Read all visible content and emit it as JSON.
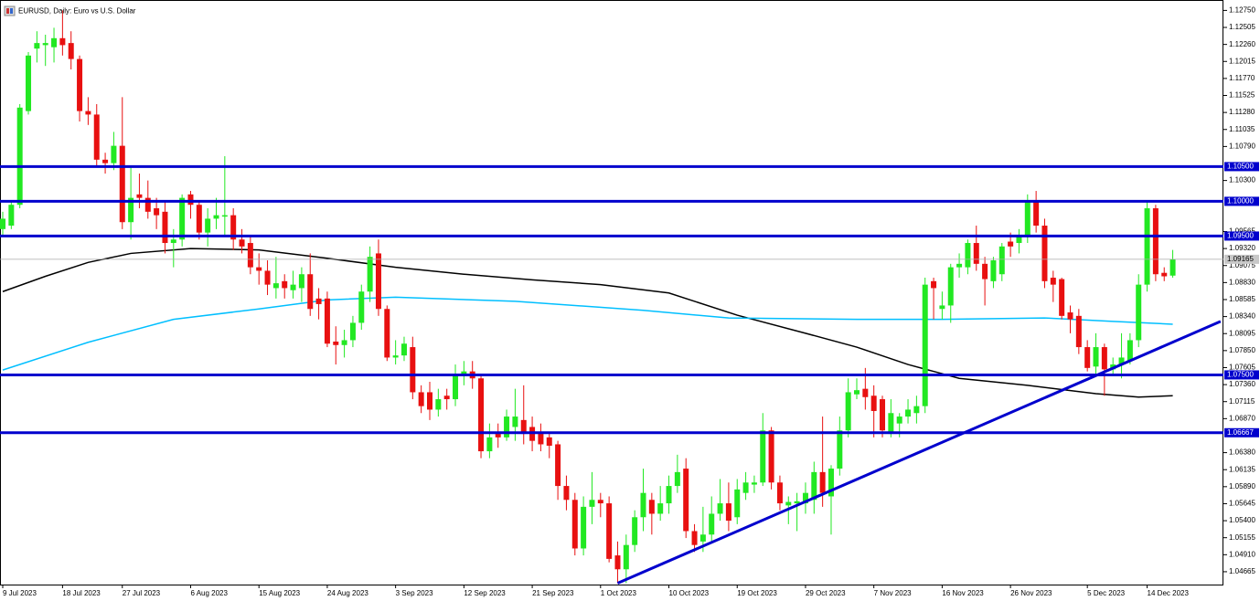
{
  "chart_data": {
    "type": "candlestick",
    "title": "EURUSD, Daily:  Euro vs U.S. Dollar",
    "up_color": "#22e822",
    "down_color": "#e81010",
    "categories": [
      "9 Jul 2023",
      null,
      null,
      null,
      null,
      null,
      null,
      "18 Jul 2023",
      null,
      null,
      null,
      null,
      null,
      null,
      "27 Jul 2023",
      null,
      null,
      null,
      null,
      null,
      null,
      null,
      "6 Aug 2023",
      null,
      null,
      null,
      null,
      null,
      null,
      null,
      "15 Aug 2023",
      null,
      null,
      null,
      null,
      null,
      null,
      null,
      "24 Aug 2023",
      null,
      null,
      null,
      null,
      null,
      null,
      null,
      "3 Sep 2023",
      null,
      null,
      null,
      null,
      null,
      null,
      null,
      "12 Sep 2023",
      null,
      null,
      null,
      null,
      null,
      null,
      null,
      "21 Sep 2023",
      null,
      null,
      null,
      null,
      null,
      null,
      null,
      "1 Oct 2023",
      null,
      null,
      null,
      null,
      null,
      null,
      null,
      "10 Oct 2023",
      null,
      null,
      null,
      null,
      null,
      null,
      null,
      "19 Oct 2023",
      null,
      null,
      null,
      null,
      null,
      null,
      null,
      "29 Oct 2023",
      null,
      null,
      null,
      null,
      null,
      null,
      null,
      "7 Nov 2023",
      null,
      null,
      null,
      null,
      null,
      null,
      null,
      "16 Nov 2023",
      null,
      null,
      null,
      null,
      null,
      null,
      null,
      "26 Nov 2023",
      null,
      null,
      null,
      null,
      null,
      null,
      null,
      null,
      "5 Dec 2023",
      null,
      null,
      null,
      null,
      null,
      null,
      "14 Dec 2023",
      null,
      null,
      null
    ],
    "open": [
      1.096,
      1.0965,
      1.0995,
      1.113,
      1.122,
      1.1225,
      1.1222,
      1.1235,
      1.1228,
      1.1205,
      1.113,
      1.1125,
      1.106,
      1.1055,
      1.108,
      1.097,
      1.101,
      1.1005,
      1.099,
      1.0985,
      1.094,
      1.0945,
      1.101,
      1.0995,
      1.0955,
      1.0975,
      1.0978,
      1.098,
      1.0945,
      1.094,
      1.0905,
      1.09,
      1.0875,
      1.0885,
      1.0872,
      1.0875,
      1.0895,
      1.086,
      1.086,
      1.0798,
      1.0793,
      1.08,
      1.0825,
      1.087,
      1.0925,
      1.0845,
      1.0775,
      1.0778,
      1.079,
      1.0725,
      1.0725,
      1.07,
      1.072,
      1.0715,
      1.075,
      1.0755,
      1.0745,
      1.064,
      1.0665,
      1.066,
      1.0675,
      1.0685,
      1.0675,
      1.0665,
      1.066,
      1.065,
      1.059,
      1.057,
      1.05,
      1.056,
      1.057,
      1.0565,
      1.049,
      1.047,
      1.0505,
      1.0545,
      1.057,
      1.055,
      1.0565,
      1.059,
      1.0615,
      1.0525,
      1.051,
      1.052,
      1.055,
      1.0565,
      1.0545,
      1.058,
      1.0592,
      1.0595,
      1.067,
      1.0595,
      1.0562,
      1.0565,
      1.0565,
      1.057,
      1.061,
      1.0575,
      1.0615,
      1.067,
      1.0722,
      1.073,
      1.072,
      1.0715,
      1.0665,
      1.068,
      1.069,
      1.0695,
      1.0705,
      1.0885,
      1.0845,
      1.085,
      1.0905,
      1.0905,
      1.094,
      1.091,
      1.0885,
      1.0895,
      1.0942,
      1.094,
      1.095,
      1.1,
      1.0965,
      1.089,
      1.0888,
      1.084,
      1.0835,
      1.079,
      1.0762,
      1.079,
      1.0758,
      1.0765,
      1.077,
      1.08,
      1.088,
      1.099,
      1.0897,
      1.0893
    ],
    "high": [
      1.0985,
      1.1,
      1.114,
      1.1215,
      1.1245,
      1.124,
      1.125,
      1.1275,
      1.1245,
      1.121,
      1.115,
      1.114,
      1.107,
      1.11,
      1.115,
      1.105,
      1.104,
      1.103,
      1.1005,
      1.1,
      1.096,
      1.101,
      1.1015,
      1.1,
      1.099,
      1.1005,
      1.1065,
      1.099,
      1.096,
      1.095,
      1.0925,
      1.0915,
      1.092,
      1.0895,
      1.09,
      1.0905,
      1.0925,
      1.0875,
      1.087,
      1.082,
      1.0815,
      1.0835,
      1.088,
      1.0935,
      1.0945,
      1.085,
      1.08,
      1.0805,
      1.0805,
      1.0735,
      1.074,
      1.073,
      1.073,
      1.0765,
      1.077,
      1.077,
      1.075,
      1.068,
      1.068,
      1.07,
      1.073,
      1.0735,
      1.069,
      1.068,
      1.0665,
      1.0655,
      1.0605,
      1.058,
      1.0575,
      1.061,
      1.058,
      1.0575,
      1.051,
      1.052,
      1.0555,
      1.0615,
      1.058,
      1.059,
      1.0605,
      1.0635,
      1.063,
      1.0535,
      1.056,
      1.0575,
      1.06,
      1.0595,
      1.06,
      1.061,
      1.0605,
      1.0695,
      1.0675,
      1.0605,
      1.0575,
      1.058,
      1.0595,
      1.0625,
      1.069,
      1.062,
      1.069,
      1.0745,
      1.0745,
      1.076,
      1.0735,
      1.072,
      1.0715,
      1.0695,
      1.0715,
      1.072,
      1.089,
      1.089,
      1.087,
      1.091,
      1.0925,
      1.0945,
      1.0965,
      1.092,
      1.092,
      1.094,
      1.0955,
      1.096,
      1.101,
      1.1015,
      1.0975,
      1.09,
      1.089,
      1.085,
      1.0845,
      1.08,
      1.081,
      1.0795,
      1.0775,
      1.081,
      1.081,
      1.0895,
      1.1,
      1.0995,
      1.0905,
      1.093
    ],
    "low": [
      1.095,
      1.096,
      1.099,
      1.1125,
      1.12,
      1.1195,
      1.12,
      1.121,
      1.119,
      1.1115,
      1.111,
      1.105,
      1.104,
      1.1045,
      1.096,
      1.0945,
      1.099,
      1.0975,
      1.096,
      1.0925,
      1.0905,
      1.0935,
      1.0975,
      1.0945,
      1.0935,
      1.096,
      1.095,
      1.093,
      1.0925,
      1.0895,
      1.088,
      1.0865,
      1.086,
      1.086,
      1.086,
      1.0855,
      1.0835,
      1.083,
      1.079,
      1.0765,
      1.0775,
      1.079,
      1.0815,
      1.0855,
      1.0835,
      1.077,
      1.0765,
      1.077,
      1.0715,
      1.0695,
      1.0685,
      1.069,
      1.07,
      1.0705,
      1.0735,
      1.073,
      1.063,
      1.063,
      1.0645,
      1.0655,
      1.0655,
      1.065,
      1.064,
      1.064,
      1.063,
      1.057,
      1.0555,
      1.049,
      1.049,
      1.0535,
      1.0545,
      1.048,
      1.045,
      1.045,
      1.0495,
      1.0525,
      1.052,
      1.054,
      1.055,
      1.058,
      1.0515,
      1.0495,
      1.0495,
      1.051,
      1.054,
      1.0525,
      1.0535,
      1.057,
      1.058,
      1.059,
      1.0585,
      1.0555,
      1.0535,
      1.0525,
      1.055,
      1.055,
      1.056,
      1.052,
      1.0605,
      1.066,
      1.0715,
      1.07,
      1.066,
      1.066,
      1.066,
      1.066,
      1.068,
      1.068,
      1.0695,
      1.083,
      1.083,
      1.0825,
      1.089,
      1.0895,
      1.09,
      1.085,
      1.0875,
      1.0885,
      1.092,
      1.0925,
      1.094,
      1.0955,
      1.0875,
      1.0855,
      1.083,
      1.081,
      1.078,
      1.0755,
      1.075,
      1.072,
      1.075,
      1.0745,
      1.0765,
      1.079,
      1.087,
      1.0885,
      1.0885,
      1.089
    ],
    "close": [
      1.0975,
      1.0995,
      1.1135,
      1.121,
      1.1228,
      1.1228,
      1.1235,
      1.1225,
      1.1205,
      1.113,
      1.1125,
      1.106,
      1.1055,
      1.108,
      1.097,
      1.1005,
      1.1005,
      1.0985,
      1.098,
      1.094,
      1.0945,
      1.1005,
      1.0995,
      1.0955,
      1.0975,
      1.098,
      1.098,
      1.0945,
      1.0935,
      1.0905,
      1.09,
      1.088,
      1.0882,
      1.0875,
      1.088,
      1.0895,
      1.0845,
      1.0852,
      1.0795,
      1.0793,
      1.08,
      1.0825,
      1.087,
      1.092,
      1.0845,
      1.0775,
      1.0778,
      1.0795,
      1.0725,
      1.0705,
      1.07,
      1.0715,
      1.0715,
      1.075,
      1.0755,
      1.0745,
      1.064,
      1.066,
      1.066,
      1.069,
      1.069,
      1.0665,
      1.0655,
      1.065,
      1.0648,
      1.059,
      1.057,
      1.05,
      1.056,
      1.057,
      1.0565,
      1.0485,
      1.047,
      1.0505,
      1.0545,
      1.058,
      1.055,
      1.0565,
      1.059,
      1.061,
      1.0525,
      1.0505,
      1.052,
      1.055,
      1.0565,
      1.054,
      1.0585,
      1.0595,
      1.0595,
      1.067,
      1.0595,
      1.0565,
      1.0567,
      1.0568,
      1.058,
      1.061,
      1.058,
      1.0615,
      1.067,
      1.0725,
      1.0728,
      1.0718,
      1.0698,
      1.067,
      1.0695,
      1.069,
      1.07,
      1.0705,
      1.088,
      1.0875,
      1.085,
      1.0905,
      1.091,
      1.094,
      1.091,
      1.0888,
      1.0915,
      1.0935,
      1.0935,
      1.095,
      1.1,
      1.0965,
      1.0885,
      1.088,
      1.0835,
      1.083,
      1.079,
      1.076,
      1.079,
      1.0758,
      1.0765,
      1.0775,
      1.08,
      1.088,
      1.099,
      1.0895,
      1.0892,
      1.09165
    ],
    "moving_averages": [
      {
        "color": "#000000",
        "x": [
          0,
          5,
          10,
          15,
          22,
          30,
          38,
          46,
          54,
          62,
          70,
          78,
          86,
          94,
          100,
          106,
          112,
          120,
          128,
          133,
          137
        ],
        "values": [
          1.087,
          1.0892,
          1.0912,
          1.0925,
          1.0932,
          1.093,
          1.0918,
          1.0905,
          1.0895,
          1.0887,
          1.088,
          1.0868,
          1.0836,
          1.081,
          1.079,
          1.0765,
          1.0745,
          1.0735,
          1.0723,
          1.0718,
          1.072
        ]
      },
      {
        "color": "#00bfff",
        "x": [
          0,
          10,
          20,
          30,
          38,
          46,
          60,
          75,
          85,
          100,
          110,
          122,
          130,
          137
        ],
        "values": [
          1.0757,
          1.0797,
          1.083,
          1.0845,
          1.0858,
          1.0862,
          1.0856,
          1.0843,
          1.0832,
          1.083,
          1.083,
          1.0832,
          1.0827,
          1.0823
        ]
      }
    ],
    "trendline": {
      "color": "#0000cd",
      "x": [
        72,
        142.6
      ],
      "values": [
        1.045,
        1.0827
      ]
    },
    "levels": {
      "color": "#0000cd",
      "values": [
        1.105,
        1.1,
        1.095,
        1.075,
        1.06667
      ],
      "labels": [
        "1.10500",
        "1.10000",
        "1.09500",
        "1.07500",
        "1.06667"
      ]
    },
    "last_price": 1.09165,
    "last_price_label": "1.09165",
    "ylim": [
      1.0448,
      1.129
    ],
    "yticks": [
      {
        "value": 1.1275,
        "label": "1.12750"
      },
      {
        "value": 1.12505,
        "label": "1.12505"
      },
      {
        "value": 1.1226,
        "label": "1.12260"
      },
      {
        "value": 1.12015,
        "label": "1.12015"
      },
      {
        "value": 1.1177,
        "label": "1.11770"
      },
      {
        "value": 1.11525,
        "label": "1.11525"
      },
      {
        "value": 1.1128,
        "label": "1.11280"
      },
      {
        "value": 1.11035,
        "label": "1.11035"
      },
      {
        "value": 1.1079,
        "label": "1.10790"
      },
      {
        "value": 1.103,
        "label": "1.10300"
      },
      {
        "value": 1.09565,
        "label": "1.09565"
      },
      {
        "value": 1.0932,
        "label": "1.09320"
      },
      {
        "value": 1.09075,
        "label": "1.09075"
      },
      {
        "value": 1.0883,
        "label": "1.08830"
      },
      {
        "value": 1.08585,
        "label": "1.08585"
      },
      {
        "value": 1.0834,
        "label": "1.08340"
      },
      {
        "value": 1.08095,
        "label": "1.08095"
      },
      {
        "value": 1.0785,
        "label": "1.07850"
      },
      {
        "value": 1.07605,
        "label": "1.07605"
      },
      {
        "value": 1.0736,
        "label": "1.07360"
      },
      {
        "value": 1.07115,
        "label": "1.07115"
      },
      {
        "value": 1.0687,
        "label": "1.06870"
      },
      {
        "value": 1.0638,
        "label": "1.06380"
      },
      {
        "value": 1.06135,
        "label": "1.06135"
      },
      {
        "value": 1.0589,
        "label": "1.05890"
      },
      {
        "value": 1.05645,
        "label": "1.05645"
      },
      {
        "value": 1.054,
        "label": "1.05400"
      },
      {
        "value": 1.05155,
        "label": "1.05155"
      },
      {
        "value": 1.0491,
        "label": "1.04910"
      },
      {
        "value": 1.04665,
        "label": "1.04665"
      }
    ]
  }
}
